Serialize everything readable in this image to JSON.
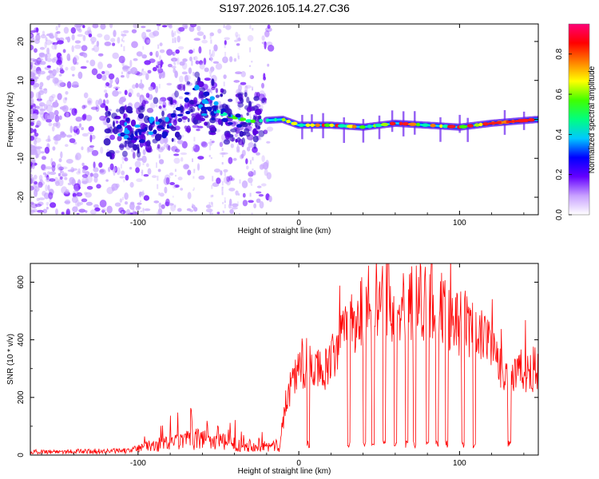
{
  "title": "S197.2026.105.14.27.C36",
  "chart_data": [
    {
      "type": "heatmap",
      "xlabel": "Height of straight line (km)",
      "ylabel": "Frequency (Hz)",
      "xlim": [
        -167,
        149
      ],
      "ylim": [
        -24.5,
        24.5
      ],
      "xticks": [
        -100,
        0,
        100
      ],
      "yticks": [
        20,
        10,
        0,
        -10,
        -20
      ],
      "ridge_x": [
        -100,
        -80,
        -65,
        -55,
        -45,
        -30,
        -10,
        0,
        20,
        40,
        60,
        80,
        100,
        120,
        149
      ],
      "ridge_freq": [
        -3,
        -1,
        6,
        3,
        1,
        -0.5,
        0,
        -1.5,
        -1.5,
        -2,
        -1,
        -1.5,
        -2,
        -1,
        0
      ],
      "colorbar": {
        "label": "Normalized spectral amplitude",
        "range": [
          0,
          0.95
        ],
        "ticks": [
          0,
          0.2,
          0.4,
          0.6,
          0.8
        ],
        "colors": [
          "#ffffff",
          "#c8a0ff",
          "#6400ff",
          "#0000ff",
          "#00c8ff",
          "#00ff80",
          "#40ff00",
          "#ffff00",
          "#ff8000",
          "#ff0000",
          "#ff0078"
        ]
      }
    },
    {
      "type": "line",
      "xlabel": "Height of straight line (km)",
      "ylabel": "SNR (10 * v/v)",
      "xlim": [
        -167,
        149
      ],
      "ylim": [
        0,
        665
      ],
      "xticks": [
        -100,
        0,
        100
      ],
      "yticks": [
        0,
        200,
        400,
        600
      ],
      "color": "#ff0000",
      "envelope_x": [
        -167,
        -105,
        -100,
        -80,
        -60,
        -40,
        -12,
        -10,
        -5,
        0,
        5,
        10,
        15,
        20,
        25,
        30,
        35,
        40,
        50,
        60,
        70,
        80,
        90,
        100,
        110,
        115,
        120,
        125,
        130,
        149
      ],
      "envelope_y": [
        12,
        15,
        25,
        45,
        60,
        40,
        30,
        110,
        250,
        300,
        320,
        300,
        280,
        320,
        380,
        440,
        470,
        510,
        540,
        540,
        550,
        540,
        500,
        470,
        430,
        400,
        350,
        300,
        280,
        300
      ],
      "dips_x": [
        6,
        31,
        41,
        46,
        53,
        60,
        67,
        72,
        80,
        86,
        92,
        102,
        109,
        131
      ]
    }
  ]
}
